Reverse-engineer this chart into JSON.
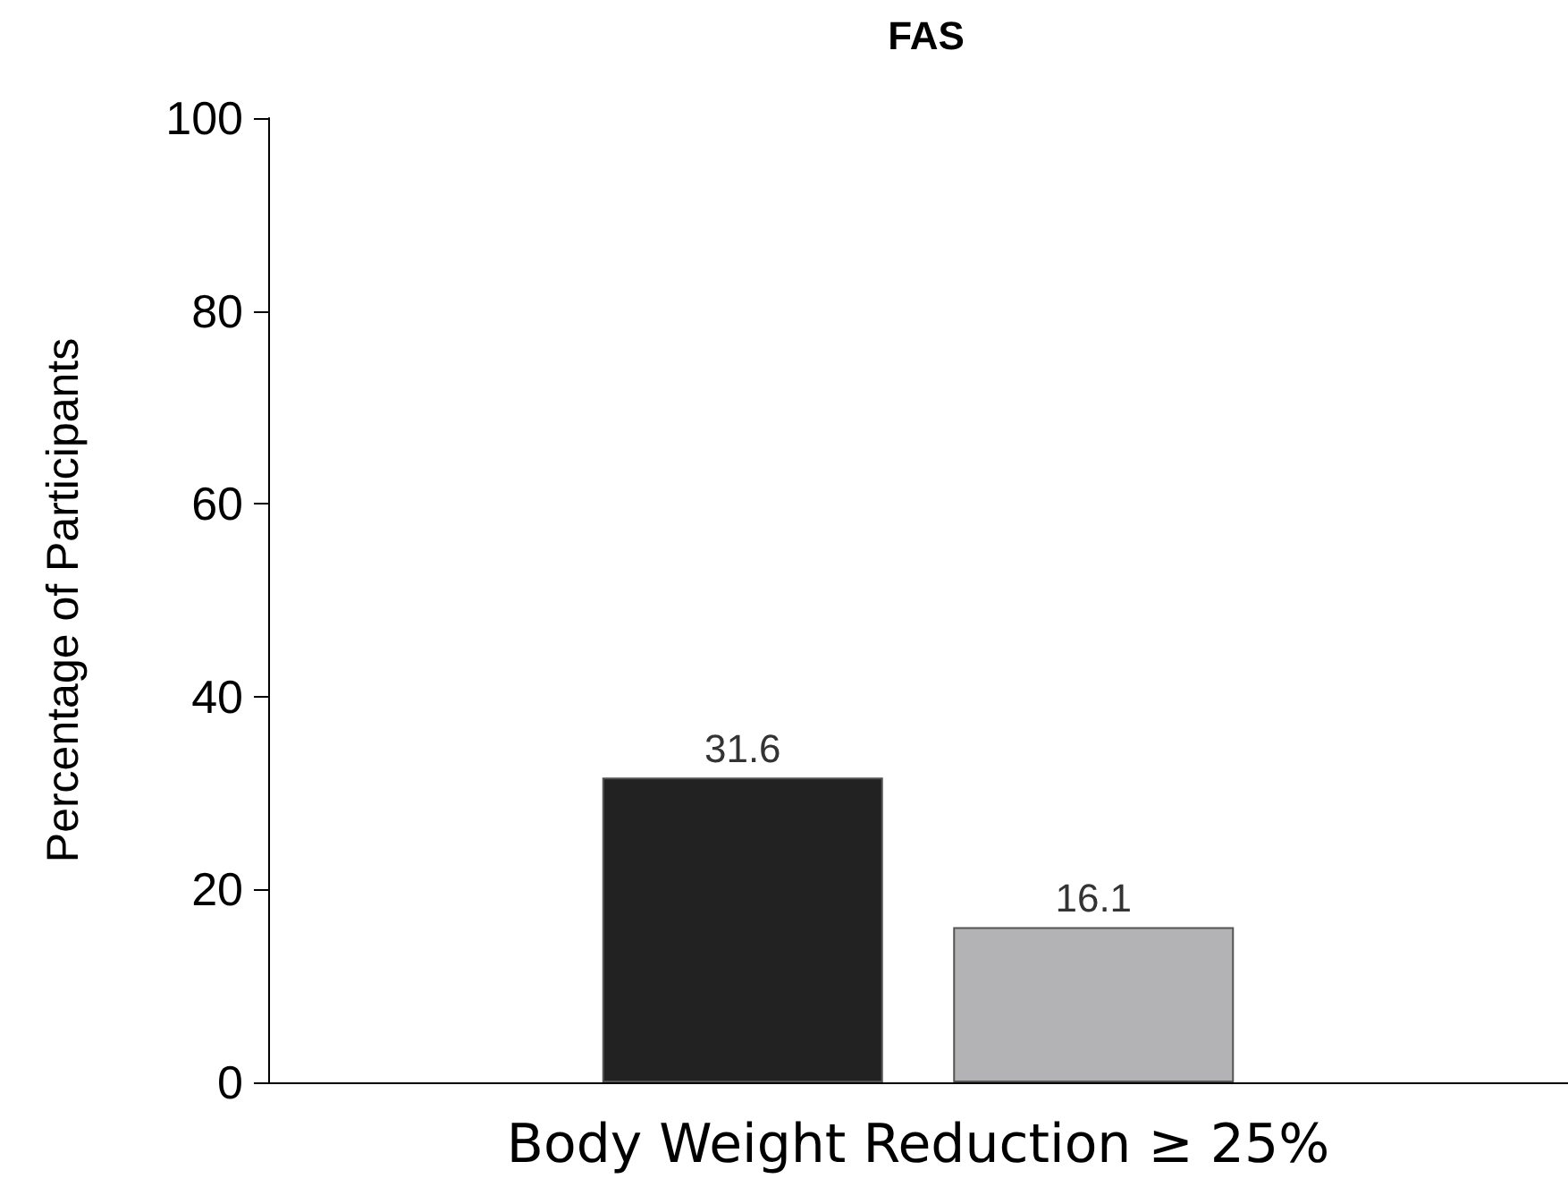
{
  "chart_data": {
    "type": "bar",
    "title": "FAS",
    "ylabel": "Percentage of Participants",
    "categories": [
      "Body Weight Reduction ≥ 25%"
    ],
    "series": [
      {
        "color": "#222222",
        "values": [
          31.6
        ]
      },
      {
        "color": "#b3b3b5",
        "values": [
          16.1
        ]
      }
    ],
    "ylim": [
      0,
      100
    ],
    "yticks": [
      0,
      20,
      40,
      60,
      80,
      100
    ],
    "grid": false,
    "data_labels": true
  }
}
